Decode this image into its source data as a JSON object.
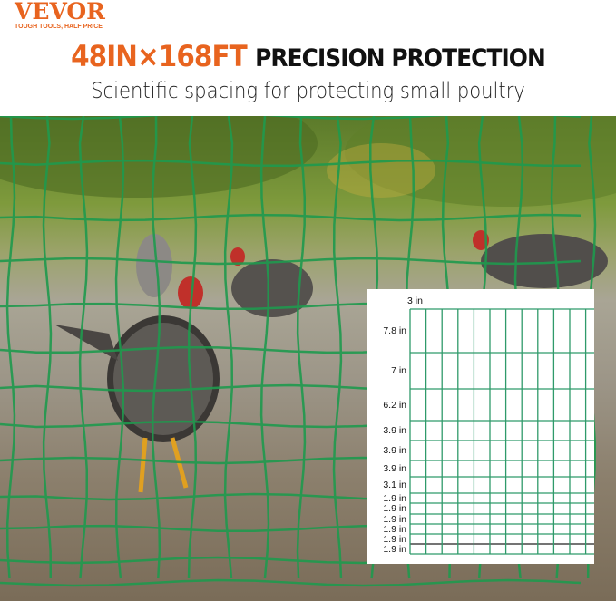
{
  "brand": {
    "name": "VEVOR",
    "tagline": "TOUGH TOOLS, HALF PRICE"
  },
  "headline": {
    "size": "48IN×168FT",
    "text": "PRECISION PROTECTION"
  },
  "subheadline": "Scientific spacing for protecting small poultry",
  "colors": {
    "accent": "#e8641f",
    "mesh": "#2f9a6a"
  },
  "spacing_diagram": {
    "column_width_label": "3 in",
    "row_labels": [
      "7.8 in",
      "7 in",
      "6.2 in",
      "3.9 in",
      "3.9 in",
      "3.9 in",
      "3.1 in",
      "1.9 in",
      "1.9 in",
      "1.9 in",
      "1.9 in",
      "1.9 in",
      "1.9 in"
    ]
  }
}
